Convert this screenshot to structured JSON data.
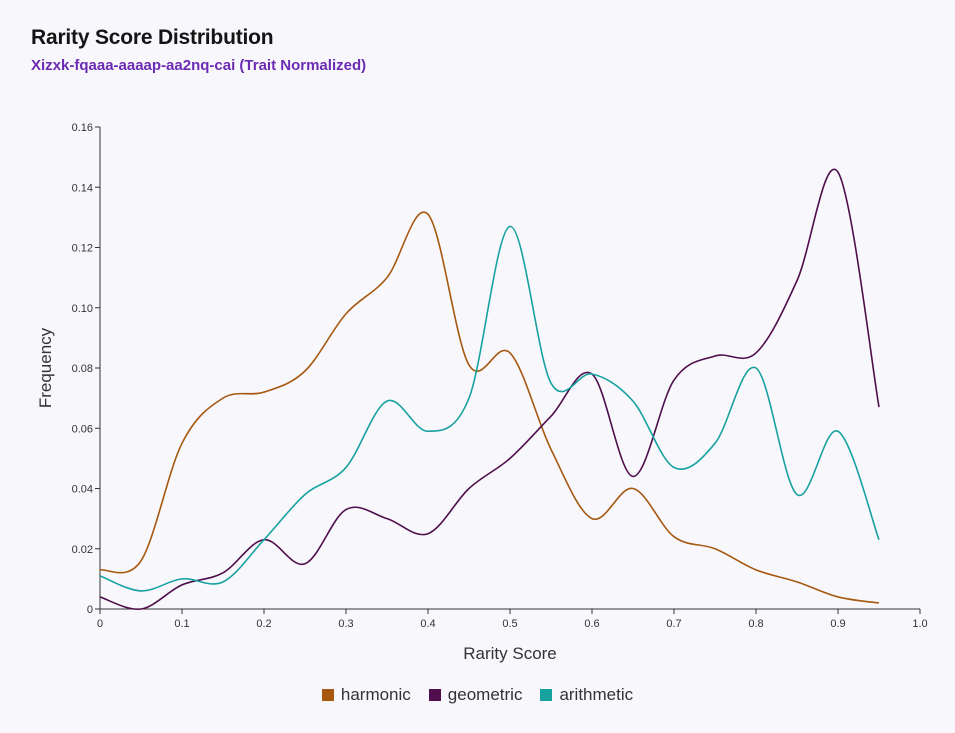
{
  "header": {
    "title": "Rarity Score Distribution",
    "subtitle": "Xizxk-fqaaa-aaaap-aa2nq-cai (Trait Normalized)"
  },
  "chart_data": {
    "type": "line",
    "xlabel": "Rarity Score",
    "ylabel": "Frequency",
    "xlim": [
      0,
      1.0
    ],
    "ylim": [
      0,
      0.16
    ],
    "xticks": [
      "0",
      "0.1",
      "0.2",
      "0.3",
      "0.4",
      "0.5",
      "0.6",
      "0.7",
      "0.8",
      "0.9",
      "1.0"
    ],
    "yticks": [
      "0",
      "0.02",
      "0.04",
      "0.06",
      "0.08",
      "0.10",
      "0.12",
      "0.14",
      "0.16"
    ],
    "grid": false,
    "legend_position": "bottom",
    "x": [
      0,
      0.05,
      0.1,
      0.15,
      0.2,
      0.25,
      0.3,
      0.35,
      0.4,
      0.45,
      0.5,
      0.55,
      0.6,
      0.65,
      0.7,
      0.75,
      0.8,
      0.85,
      0.9,
      0.95
    ],
    "series": [
      {
        "name": "harmonic",
        "color": "#a6580f",
        "values": [
          0.013,
          0.016,
          0.055,
          0.07,
          0.072,
          0.079,
          0.098,
          0.11,
          0.131,
          0.081,
          0.085,
          0.053,
          0.03,
          0.04,
          0.024,
          0.02,
          0.013,
          0.009,
          0.004,
          0.002
        ]
      },
      {
        "name": "geometric",
        "color": "#4f0e4c",
        "values": [
          0.004,
          0.0,
          0.008,
          0.012,
          0.023,
          0.015,
          0.033,
          0.03,
          0.025,
          0.04,
          0.05,
          0.064,
          0.078,
          0.044,
          0.076,
          0.084,
          0.085,
          0.109,
          0.145,
          0.067
        ]
      },
      {
        "name": "arithmetic",
        "color": "#17a2a0",
        "values": [
          0.011,
          0.006,
          0.01,
          0.009,
          0.023,
          0.038,
          0.047,
          0.069,
          0.059,
          0.07,
          0.127,
          0.075,
          0.078,
          0.069,
          0.047,
          0.055,
          0.08,
          0.038,
          0.059,
          0.023
        ]
      }
    ]
  }
}
